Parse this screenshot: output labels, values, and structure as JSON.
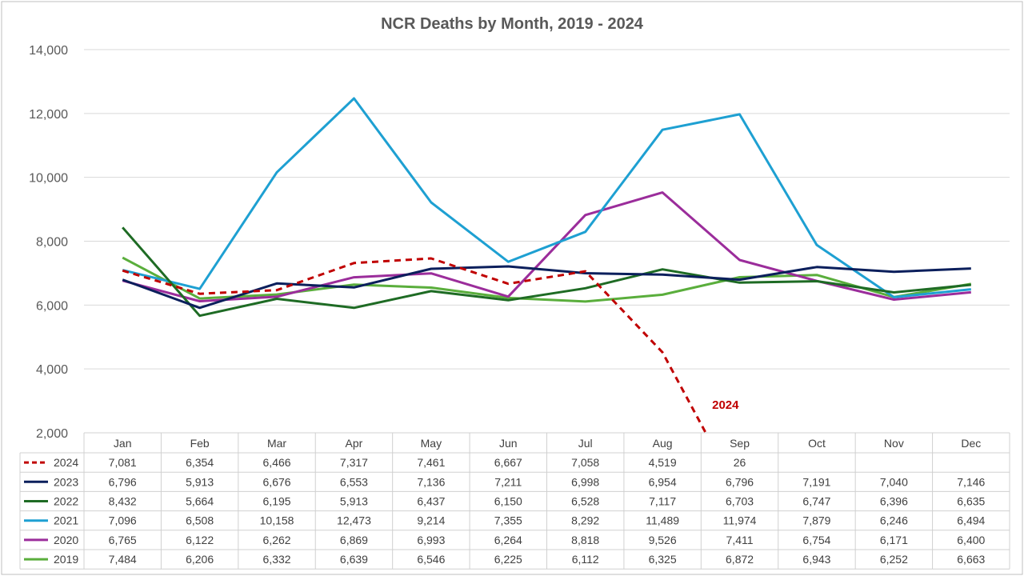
{
  "chart_data": {
    "type": "line",
    "title": "NCR Deaths by Month, 2019 - 2024",
    "categories": [
      "Jan",
      "Feb",
      "Mar",
      "Apr",
      "May",
      "Jun",
      "Jul",
      "Aug",
      "Sep",
      "Oct",
      "Nov",
      "Dec"
    ],
    "ylim": [
      2000,
      14000
    ],
    "yticks": [
      2000,
      4000,
      6000,
      8000,
      10000,
      12000,
      14000
    ],
    "ytick_labels": [
      "2,000",
      "4,000",
      "6,000",
      "8,000",
      "10,000",
      "12,000",
      "14,000"
    ],
    "grid": true,
    "legend": "data-table",
    "annotation": {
      "text": "2024",
      "color": "#c00000"
    },
    "series": [
      {
        "name": "2024",
        "color": "#c00000",
        "dashed": true,
        "values": [
          7081,
          6354,
          6466,
          7317,
          7461,
          6667,
          7058,
          4519,
          26,
          null,
          null,
          null
        ],
        "labels": [
          "7,081",
          "6,354",
          "6,466",
          "7,317",
          "7,461",
          "6,667",
          "7,058",
          "4,519",
          "26",
          "",
          "",
          ""
        ]
      },
      {
        "name": "2023",
        "color": "#0b1f5c",
        "dashed": false,
        "values": [
          6796,
          5913,
          6676,
          6553,
          7136,
          7211,
          6998,
          6954,
          6796,
          7191,
          7040,
          7146
        ],
        "labels": [
          "6,796",
          "5,913",
          "6,676",
          "6,553",
          "7,136",
          "7,211",
          "6,998",
          "6,954",
          "6,796",
          "7,191",
          "7,040",
          "7,146"
        ]
      },
      {
        "name": "2022",
        "color": "#1e6b24",
        "dashed": false,
        "values": [
          8432,
          5664,
          6195,
          5913,
          6437,
          6150,
          6528,
          7117,
          6703,
          6747,
          6396,
          6635
        ],
        "labels": [
          "8,432",
          "5,664",
          "6,195",
          "5,913",
          "6,437",
          "6,150",
          "6,528",
          "7,117",
          "6,703",
          "6,747",
          "6,396",
          "6,635"
        ]
      },
      {
        "name": "2021",
        "color": "#1ea0d2",
        "dashed": false,
        "values": [
          7096,
          6508,
          10158,
          12473,
          9214,
          7355,
          8292,
          11489,
          11974,
          7879,
          6246,
          6494
        ],
        "labels": [
          "7,096",
          "6,508",
          "10,158",
          "12,473",
          "9,214",
          "7,355",
          "8,292",
          "11,489",
          "11,974",
          "7,879",
          "6,246",
          "6,494"
        ]
      },
      {
        "name": "2020",
        "color": "#9b2d9b",
        "dashed": false,
        "values": [
          6765,
          6122,
          6262,
          6869,
          6993,
          6264,
          8818,
          9526,
          7411,
          6754,
          6171,
          6400
        ],
        "labels": [
          "6,765",
          "6,122",
          "6,262",
          "6,869",
          "6,993",
          "6,264",
          "8,818",
          "9,526",
          "7,411",
          "6,754",
          "6,171",
          "6,400"
        ]
      },
      {
        "name": "2019",
        "color": "#5aae3c",
        "dashed": false,
        "values": [
          7484,
          6206,
          6332,
          6639,
          6546,
          6225,
          6112,
          6325,
          6872,
          6943,
          6252,
          6663
        ],
        "labels": [
          "7,484",
          "6,206",
          "6,332",
          "6,639",
          "6,546",
          "6,225",
          "6,112",
          "6,325",
          "6,872",
          "6,943",
          "6,252",
          "6,663"
        ]
      }
    ]
  }
}
